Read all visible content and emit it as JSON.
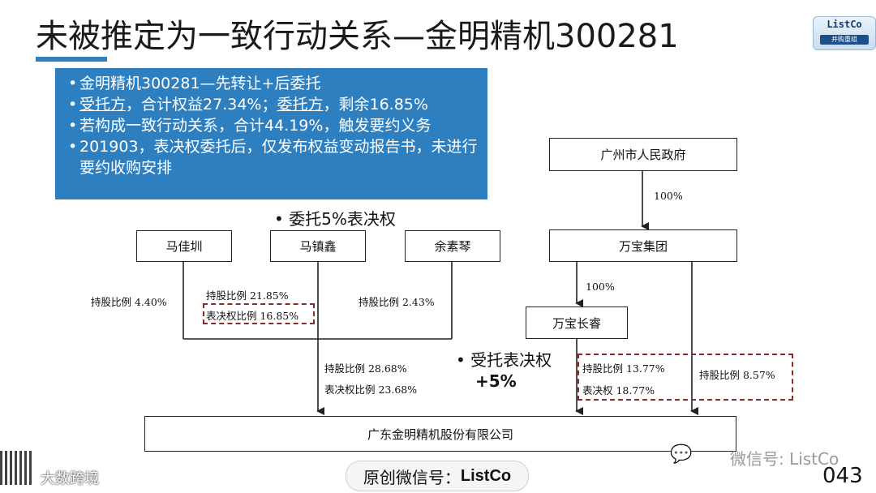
{
  "title": "未被推定为一致行动关系—金明精机300281",
  "logo": {
    "name": "ListCo",
    "sub": "并购重组"
  },
  "bullets": [
    "金明精机300281—先转让+后委托",
    "受托方，合计权益27.34%；委托方，剩余16.85%",
    "若构成一致行动关系，合计44.19%，触发要约义务",
    "201903，表决权委托后，仅发布权益变动报告书，未进行要约收购安排"
  ],
  "annotations": {
    "delegate": "• 委托5%表决权",
    "entrusted": "• 受托表决权",
    "plus": "+5%"
  },
  "nodes": {
    "majiazhen": "马佳圳",
    "mazhenxin": "马镇鑫",
    "yusuqin": "余素琴",
    "gz_gov": "广州市人民政府",
    "wanbao_group": "万宝集团",
    "wanbao_changrui": "万宝长睿",
    "company": "广东金明精机股份有限公司"
  },
  "labels": {
    "majiazhen_share": "持股比例 4.40%",
    "mazhenxin_share": "持股比例 21.85%",
    "mazhenxin_vote": "表决权比例 16.85%",
    "yusuqin_share": "持股比例 2.43%",
    "family_share": "持股比例 28.68%",
    "family_vote": "表决权比例 23.68%",
    "gov_pct": "100%",
    "group_pct": "100%",
    "changrui_share": "持股比例 13.77%",
    "changrui_vote": "表决权 18.77%",
    "group_share": "持股比例 8.57%"
  },
  "footer": {
    "pill_prefix": "原创微信号：",
    "pill_name": "ListCo",
    "watermark": "微信号: ListCo",
    "page": "043",
    "qr_label": "大数跨境"
  },
  "colors": {
    "accent": "#2e7fc0",
    "dash": "#8b2a2a"
  }
}
